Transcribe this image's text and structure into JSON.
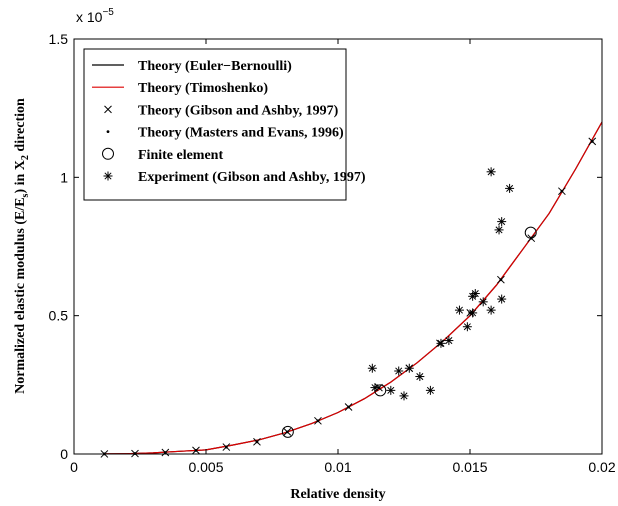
{
  "chart_data": {
    "type": "line",
    "xlabel": "Relative density",
    "ylabel_parts": [
      "Normalized elastic modulus (E/E",
      "s",
      ") in X",
      "2",
      " direction"
    ],
    "xlim": [
      0,
      0.02
    ],
    "ylim": [
      0,
      1.5e-05
    ],
    "x_ticks": [
      0,
      0.005,
      0.01,
      0.015,
      0.02
    ],
    "x_tick_labels": [
      "0",
      "0.005",
      "0.01",
      "0.015",
      "0.02"
    ],
    "y_ticks": [
      0,
      5e-06,
      1e-05,
      1.5e-05
    ],
    "y_tick_labels": [
      "0",
      "0.5",
      "1",
      "1.5"
    ],
    "y_multiplier": "x 10",
    "y_multiplier_exp": "−5",
    "grid": false,
    "legend_position": "top-left",
    "series": [
      {
        "name": "Theory (Euler−Bernoulli)",
        "style": "line",
        "color": "#000000",
        "x": [
          0.0012,
          0.002,
          0.003,
          0.004,
          0.005,
          0.006,
          0.007,
          0.008,
          0.009,
          0.01,
          0.011,
          0.012,
          0.013,
          0.014,
          0.015,
          0.016,
          0.017,
          0.018,
          0.019,
          0.02
        ],
        "y": [
          2.6e-09,
          1.2e-08,
          4e-08,
          9.6e-08,
          1.5e-07,
          3.2e-07,
          5.1e-07,
          7.7e-07,
          1.1e-06,
          1.5e-06,
          2e-06,
          2.6e-06,
          3.3e-06,
          4.1e-06,
          5e-06,
          6.1e-06,
          7.4e-06,
          8.7e-06,
          1.03e-05,
          1.2e-05
        ]
      },
      {
        "name": "Theory (Timoshenko)",
        "style": "line",
        "color": "#dd0000",
        "x": [
          0.0012,
          0.002,
          0.003,
          0.004,
          0.005,
          0.006,
          0.007,
          0.008,
          0.009,
          0.01,
          0.011,
          0.012,
          0.013,
          0.014,
          0.015,
          0.016,
          0.017,
          0.018,
          0.019,
          0.02
        ],
        "y": [
          2.6e-09,
          1.2e-08,
          4e-08,
          9.6e-08,
          1.5e-07,
          3.2e-07,
          5.1e-07,
          7.7e-07,
          1.1e-06,
          1.5e-06,
          2e-06,
          2.6e-06,
          3.3e-06,
          4.1e-06,
          5e-06,
          6.1e-06,
          7.4e-06,
          8.7e-06,
          1.03e-05,
          1.2e-05
        ]
      },
      {
        "name": "Theory (Gibson and Ashby, 1997)",
        "style": "x-marker",
        "color": "#000000",
        "x": [
          0.00115,
          0.00231,
          0.00346,
          0.00462,
          0.00577,
          0.00693,
          0.00808,
          0.00924,
          0.0104,
          0.01155,
          0.0127,
          0.01386,
          0.01501,
          0.01617,
          0.01732,
          0.01848,
          0.01963
        ],
        "y": [
          2.6e-09,
          1.6e-08,
          5.5e-08,
          1.3e-07,
          2.5e-07,
          4.4e-07,
          8e-07,
          1.2e-06,
          1.7e-06,
          2.4e-06,
          3.1e-06,
          4e-06,
          5.1e-06,
          6.3e-06,
          7.8e-06,
          9.5e-06,
          1.13e-05
        ]
      },
      {
        "name": "Theory (Masters and Evans, 1996)",
        "style": "dot-marker",
        "color": "#000000",
        "x": [
          0.00115,
          0.00231,
          0.00346,
          0.00462,
          0.00577,
          0.00693,
          0.00808,
          0.00924,
          0.0104,
          0.01155,
          0.0127,
          0.01386,
          0.01501,
          0.01617,
          0.01732,
          0.01848,
          0.01963
        ],
        "y": [
          2.6e-09,
          1.6e-08,
          5.5e-08,
          1.3e-07,
          2.5e-07,
          4.4e-07,
          8e-07,
          1.2e-06,
          1.7e-06,
          2.4e-06,
          3.1e-06,
          4e-06,
          5.1e-06,
          6.3e-06,
          7.8e-06,
          9.5e-06,
          1.13e-05
        ]
      },
      {
        "name": "Finite element",
        "style": "circle-marker",
        "color": "#000000",
        "x": [
          0.0081,
          0.0116,
          0.0173
        ],
        "y": [
          8e-07,
          2.3e-06,
          8e-06
        ]
      },
      {
        "name": "Experiment (Gibson and Ashby, 1997)",
        "style": "star-marker",
        "color": "#000000",
        "x": [
          0.0113,
          0.0114,
          0.012,
          0.0123,
          0.0125,
          0.0127,
          0.0131,
          0.0135,
          0.0139,
          0.0142,
          0.0146,
          0.0149,
          0.0151,
          0.0151,
          0.0152,
          0.0155,
          0.0158,
          0.0158,
          0.0161,
          0.0162,
          0.0162,
          0.0165
        ],
        "y": [
          3.1e-06,
          2.4e-06,
          2.3e-06,
          3e-06,
          2.1e-06,
          3.1e-06,
          2.8e-06,
          2.3e-06,
          4e-06,
          4.1e-06,
          5.2e-06,
          4.6e-06,
          5.1e-06,
          5.7e-06,
          5.8e-06,
          5.5e-06,
          5.2e-06,
          1.02e-05,
          8.1e-06,
          8.4e-06,
          5.6e-06,
          9.6e-06
        ]
      }
    ]
  }
}
